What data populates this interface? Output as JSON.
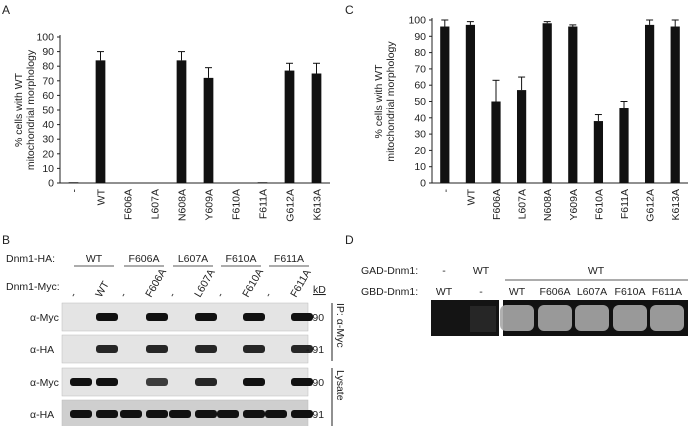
{
  "panels": {
    "A": {
      "letter": "A"
    },
    "B": {
      "letter": "B"
    },
    "C": {
      "letter": "C"
    },
    "D": {
      "letter": "D"
    }
  },
  "chart_data": [
    {
      "id": "A",
      "type": "bar",
      "ylabel": "% cells with WT\nmitochondrial morphology",
      "ylim": [
        0,
        100
      ],
      "yticks": [
        0,
        10,
        20,
        30,
        40,
        50,
        60,
        70,
        80,
        90,
        100
      ],
      "categories": [
        "-",
        "WT",
        "F606A",
        "L607A",
        "N608A",
        "Y609A",
        "F610A",
        "F611A",
        "G612A",
        "K613A"
      ],
      "values": [
        0.5,
        84,
        0,
        0,
        84,
        72,
        0,
        0.5,
        77,
        75
      ],
      "errors": [
        0,
        6,
        0,
        0,
        6,
        7,
        0,
        0,
        5,
        7
      ],
      "bar_color": "#111111"
    },
    {
      "id": "C",
      "type": "bar",
      "ylabel": "% cells with WT\nmitochondrial morphology",
      "ylim": [
        0,
        100
      ],
      "yticks": [
        0,
        10,
        20,
        30,
        40,
        50,
        60,
        70,
        80,
        90,
        100
      ],
      "categories": [
        "-",
        "WT",
        "F606A",
        "L607A",
        "N608A",
        "Y609A",
        "F610A",
        "F611A",
        "G612A",
        "K613A"
      ],
      "values": [
        96,
        97,
        50,
        57,
        98,
        96,
        38,
        46,
        97,
        96
      ],
      "errors": [
        4,
        2,
        13,
        8,
        1,
        1,
        4,
        4,
        3,
        4
      ],
      "bar_color": "#111111"
    }
  ],
  "blot": {
    "ha_label": "Dnm1-HA:",
    "myc_label": "Dnm1-Myc:",
    "groups": [
      {
        "ha": "WT",
        "lanes": [
          "-",
          "WT"
        ]
      },
      {
        "ha": "F606A",
        "lanes": [
          "-",
          "F606A"
        ]
      },
      {
        "ha": "L607A",
        "lanes": [
          "-",
          "L607A"
        ]
      },
      {
        "ha": "F610A",
        "lanes": [
          "-",
          "F610A"
        ]
      },
      {
        "ha": "F611A",
        "lanes": [
          "-",
          "F611A"
        ]
      }
    ],
    "kd_label": "kD",
    "rows": [
      {
        "antibody": "α-Myc",
        "kd": "90"
      },
      {
        "antibody": "α-HA",
        "kd": "91"
      },
      {
        "antibody": "α-Myc",
        "kd": "90"
      },
      {
        "antibody": "α-HA",
        "kd": "91"
      }
    ],
    "side_labels": [
      "IP: α-Myc",
      "Lysate"
    ]
  },
  "y2h": {
    "gad_label": "GAD-Dnm1:",
    "gbd_label": "GBD-Dnm1:",
    "gad_values": [
      "-",
      "WT",
      "WT"
    ],
    "gbd_values": [
      "WT",
      "-",
      "WT",
      "F606A",
      "L607A",
      "F610A",
      "F611A"
    ]
  }
}
